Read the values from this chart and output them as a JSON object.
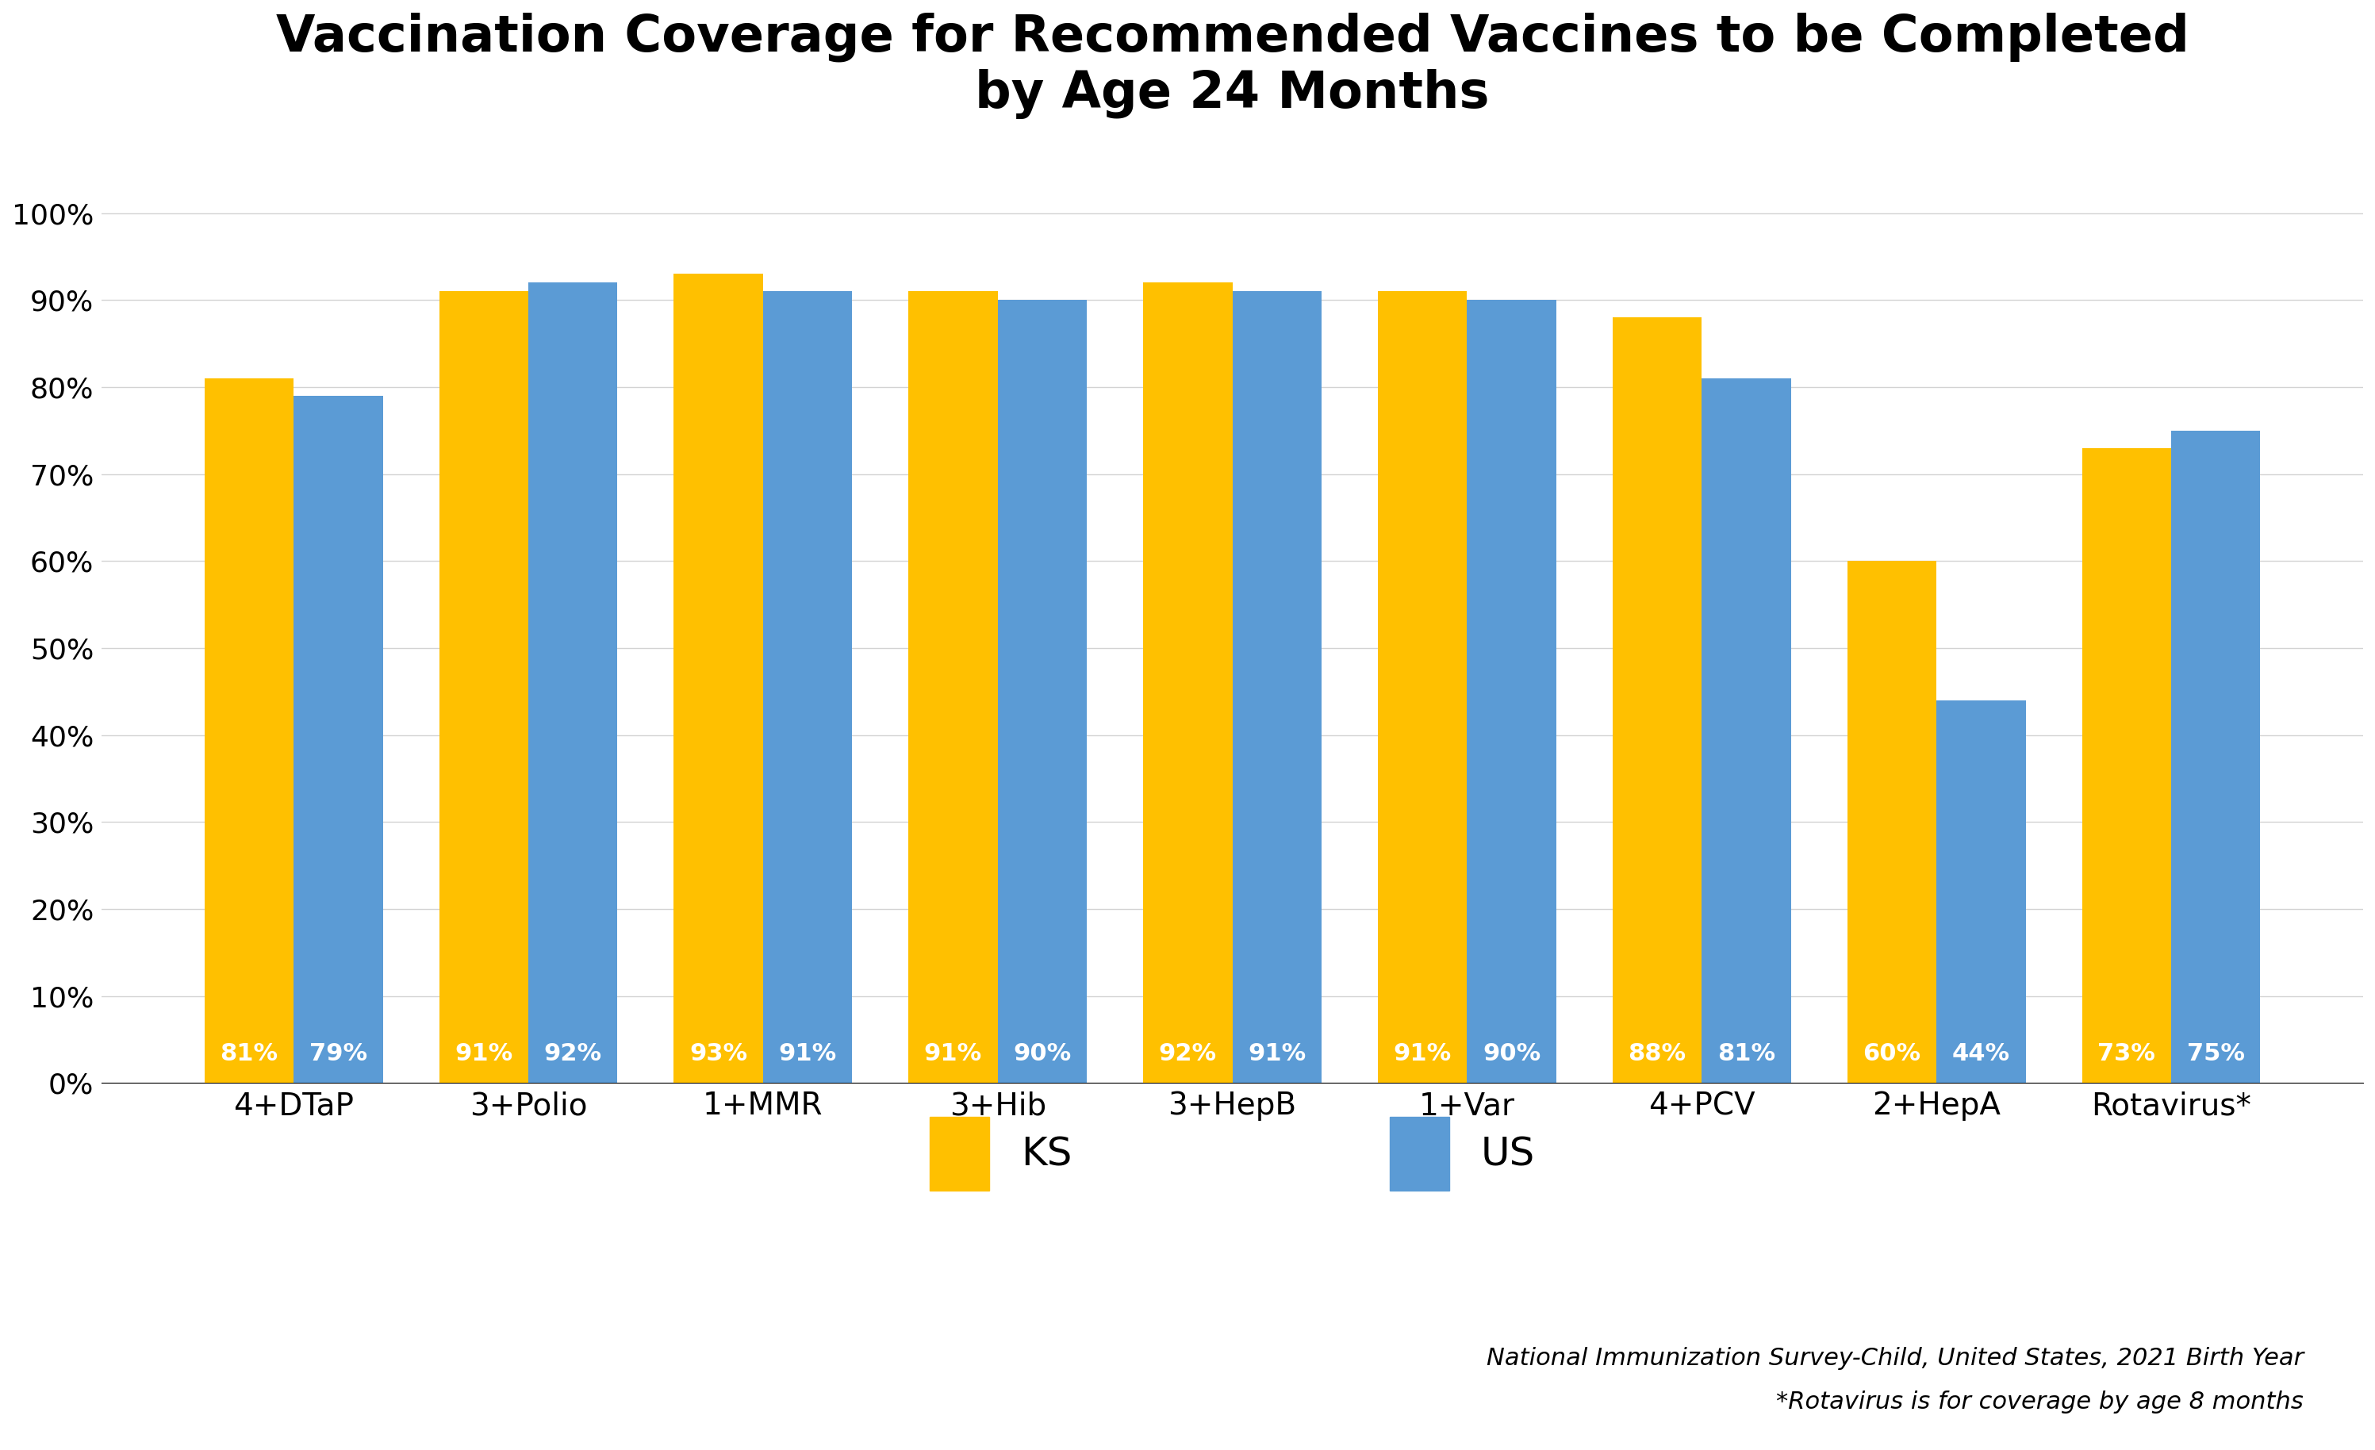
{
  "title": "Vaccination Coverage for Recommended Vaccines to be Completed\nby Age 24 Months",
  "categories": [
    "4+DTaP",
    "3+Polio",
    "1+MMR",
    "3+Hib",
    "3+HepB",
    "1+Var",
    "4+PCV",
    "2+HepA",
    "Rotavirus*"
  ],
  "ks_values": [
    81,
    91,
    93,
    91,
    92,
    91,
    88,
    60,
    73
  ],
  "us_values": [
    79,
    92,
    91,
    90,
    91,
    90,
    81,
    44,
    75
  ],
  "ks_color": "#FFC000",
  "us_color": "#5B9BD5",
  "bar_label_color": "#FFFFFF",
  "ylabel_ticks": [
    "0%",
    "10%",
    "20%",
    "30%",
    "40%",
    "50%",
    "60%",
    "70%",
    "80%",
    "90%",
    "100%"
  ],
  "ytick_values": [
    0,
    10,
    20,
    30,
    40,
    50,
    60,
    70,
    80,
    90,
    100
  ],
  "ylim": [
    0,
    107
  ],
  "legend_ks": "KS",
  "legend_us": "US",
  "footnote1": "National Immunization Survey-Child, United States, 2021 Birth Year",
  "footnote2": "*Rotavirus is for coverage by age 8 months",
  "bar_width": 0.38,
  "title_fontsize": 46,
  "tick_fontsize": 26,
  "xlabel_fontsize": 28,
  "bar_label_fontsize": 22,
  "legend_fontsize": 36,
  "footnote_fontsize": 22
}
